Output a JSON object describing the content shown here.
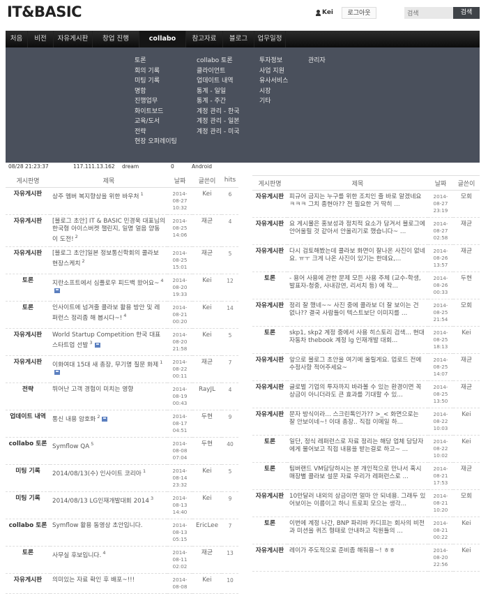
{
  "header": {
    "logo": "IT&BASIC",
    "user": "Kei",
    "logout": "로그아웃",
    "search_placeholder": "검색",
    "search_button": "검색"
  },
  "nav": {
    "items": [
      "처음",
      "비전",
      "자유게시판",
      "창업 진행",
      "collabo",
      "참고자료",
      "블로그",
      "업무일정"
    ],
    "active": "collabo",
    "dropdown": [
      [
        "토론",
        "회의 기록",
        "미팅 기록",
        "명함",
        "진행업무",
        "화이트보드",
        "교육/도서",
        "전략",
        "현장 오퍼레이팅"
      ],
      [
        "collabo 토론",
        "클라이언트",
        "업데이트 내역",
        "통계 - 일일",
        "통계 - 주간",
        "계정 관리 - 한국",
        "계정 관리 - 일본",
        "계정 관리 - 미국"
      ],
      [
        "투자정보",
        "사업 지원",
        "유사서비스",
        "시장",
        "기타"
      ],
      [
        "관리자"
      ]
    ]
  },
  "background_row": [
    "08/28 21:23:37",
    "117.111.13.162",
    "dream",
    "0",
    "Android"
  ],
  "left_table": {
    "headers": [
      "게시판명",
      "제목",
      "날짜",
      "글쓴이",
      "hits"
    ],
    "rows": [
      {
        "cat": "자유게시판",
        "title": "상주 멤버 복지향상을 위한 바우처",
        "count": "1",
        "file": false,
        "date": "2014-08-27",
        "time": "10:32",
        "author": "Kei",
        "hits": "6"
      },
      {
        "cat": "자유게시판",
        "title": "[블로그 초안] IT & BASIC 민경욱 대표님의 한국형 아이스버켓 챌린지, 일명 얼음 양동이 도전!",
        "count": "2",
        "file": false,
        "date": "2014-08-25",
        "time": "14:06",
        "author": "재균",
        "hits": "4"
      },
      {
        "cat": "자유게시판",
        "title": "[블로그 초안]일본 정보통신학회의 콜라보 현장스케치",
        "count": "2",
        "file": false,
        "date": "2014-08-25",
        "time": "15:01",
        "author": "재균",
        "hits": "5"
      },
      {
        "cat": "토론",
        "title": "지란소프트에서 심플로우 피드백 왔어요~",
        "count": "4",
        "file": true,
        "date": "2014-08-20",
        "time": "19:33",
        "author": "Kei",
        "hits": "12"
      },
      {
        "cat": "토론",
        "title": "인사이트에 넘겨줄 콜라보 활용 방안 및 레퍼런스 정리좀 해 봅시다~!",
        "count": "4",
        "file": false,
        "date": "2014-08-21",
        "time": "00:20",
        "author": "Kei",
        "hits": "14"
      },
      {
        "cat": "자유게시판",
        "title": "World Startup Competition 한국 대표 스타트업 선발",
        "count": "3",
        "file": true,
        "date": "2014-08-20",
        "time": "21:58",
        "author": "Kei",
        "hits": "5"
      },
      {
        "cat": "자유게시판",
        "title": "이화여대 15대 새 총장, 무기명 질문 화제",
        "count": "1",
        "file": true,
        "date": "2014-08-22",
        "time": "00:11",
        "author": "재균",
        "hits": "7"
      },
      {
        "cat": "전략",
        "title": "뛰어난 고객 경험이 미치는 영향",
        "count": "",
        "file": false,
        "date": "2014-08-19",
        "time": "00:43",
        "author": "RayJL",
        "hits": "4"
      },
      {
        "cat": "업데이트 내역",
        "title": "통신 내용 암호화",
        "count": "2",
        "file": true,
        "date": "2014-08-17",
        "time": "04:51",
        "author": "두현",
        "hits": "9"
      },
      {
        "cat": "collabo 토론",
        "title": "Symflow QA",
        "count": "5",
        "file": false,
        "date": "2014-08-08",
        "time": "07:04",
        "author": "두현",
        "hits": "40"
      },
      {
        "cat": "미팅 기록",
        "title": "2014/08/13(수) 인사이트 코리아",
        "count": "1",
        "file": false,
        "date": "2014-08-14",
        "time": "23:32",
        "author": "Kei",
        "hits": "5"
      },
      {
        "cat": "미팅 기록",
        "title": "2014/08/13 LG인재개발대회 2014",
        "count": "3",
        "file": false,
        "date": "2014-08-13",
        "time": "14:40",
        "author": "Kei",
        "hits": "9"
      },
      {
        "cat": "collabo 토론",
        "title": "Symflow 활용 동영상 초안입니다.",
        "count": "",
        "file": false,
        "date": "2014-08-13",
        "time": "05:15",
        "author": "EricLee",
        "hits": "7"
      },
      {
        "cat": "토론",
        "title": "사무실 후보입니다.",
        "count": "4",
        "file": false,
        "date": "2014-08-11",
        "time": "02:02",
        "author": "재균",
        "hits": "13"
      },
      {
        "cat": "자유게시판",
        "title": "의미있는 자료 확인 후 배포~!!!",
        "count": "",
        "file": false,
        "date": "2014-08-08",
        "time": "",
        "author": "Kei",
        "hits": "10"
      }
    ]
  },
  "right_table": {
    "headers": [
      "게시판명",
      "제목",
      "날짜",
      "글쓴이"
    ],
    "rows": [
      {
        "cat": "자유게시판",
        "title": "피규어 금지는 누구를 위한 조치인 줄 바로 알겠네요 ㅋㅋㅋ 그치 종현아?? 전 필요한 거 딱히 ...",
        "date": "2014-08-27",
        "time": "23:19",
        "author": "모회"
      },
      {
        "cat": "자유게시판",
        "title": "요 게시물은 홍보성과 정치적 요소가 담겨서 블로그에 안어울릴 것 같아서 안올리기로 했습니다~ ...",
        "date": "2014-08-27",
        "time": "02:58",
        "author": "재균"
      },
      {
        "cat": "자유게시판",
        "title": "다시 검토해봤는데 콜라보 화면이 잘나온 사진이 없네요. ㅠㅜ 크게 나온 사진이 있기는 한데요,...",
        "date": "2014-08-26",
        "time": "13:57",
        "author": "재균"
      },
      {
        "cat": "토론",
        "title": "- 용어 사용에 관한 문제 모든 사용 주체 (교수-학생, 발표자-청중, 사내강연, 리서치 등) 에 작...",
        "date": "2014-08-26",
        "time": "00:33",
        "author": "두현"
      },
      {
        "cat": "자유게시판",
        "title": "정리 잘 했네~~ 사진 중에 콜라보 더 잘 보이는 건 없나?? 결국 사람들이 텍스트보단 이미지를 ...",
        "date": "2014-08-25",
        "time": "21:54",
        "author": "모회"
      },
      {
        "cat": "토론",
        "title": "skp1, skp2 계정 중에서 사용 히스토리 검색... 현대자동차 thebook 계정 lg 인재개발 대회...",
        "date": "2014-08-25",
        "time": "18:13",
        "author": "Kei"
      },
      {
        "cat": "자유게시판",
        "title": "앞으로 블로그 초안을 여기에 올릴게요. 업로드 전에 수정사항 적어주세요~",
        "date": "2014-08-25",
        "time": "14:07",
        "author": "재균"
      },
      {
        "cat": "자유게시판",
        "title": "글로벌 기업의 투자까지 바라볼 수 있는 환경이면 꼭 상금이 아니더라도 큰 효과를 기대할 수 있...",
        "date": "2014-08-25",
        "time": "13:50",
        "author": "재균"
      },
      {
        "cat": "자유게시판",
        "title": "문자 방식이라... 스크린톡인가?? >_< 화면으로는 잘 안보이네~! 이대 총장.. 직접 이메일 하...",
        "date": "2014-08-22",
        "time": "10:03",
        "author": "Kei"
      },
      {
        "cat": "토론",
        "title": "일단, 정식 레퍼런스로 자료 정리는 해당 업체 담당자에게 물어보고 직접 내용을 받는걸로 하고~ ...",
        "date": "2014-08-22",
        "time": "10:02",
        "author": "Kei"
      },
      {
        "cat": "토론",
        "title": "팀버랜드 VM담당하시는 분 개인적으로 만나서 혹시 매장별 콜라보 설문 자료 우리가 레퍼런스로 ...",
        "date": "2014-08-21",
        "time": "17:53",
        "author": "재균"
      },
      {
        "cat": "자유게시판",
        "title": "10만달러 내외의 상금이면 얼마 안 되네용. 그래두 있어보이는 이름이고 하니 트로피 모으는 생각...",
        "date": "2014-08-21",
        "time": "10:20",
        "author": "모회"
      },
      {
        "cat": "토론",
        "title": "이번에 계정 나간, BNP 파리바 카디프는 회사의 비전과 미션을 퀴즈 형태로 안내하고 직원들의 ...",
        "date": "2014-08-21",
        "time": "00:22",
        "author": "Kei"
      },
      {
        "cat": "자유게시판",
        "title": "레이가 주도적으로 준비좀 해줘용~! ㅎㅎ",
        "date": "2014-08-20",
        "time": "22:56",
        "author": "Kei"
      }
    ]
  }
}
